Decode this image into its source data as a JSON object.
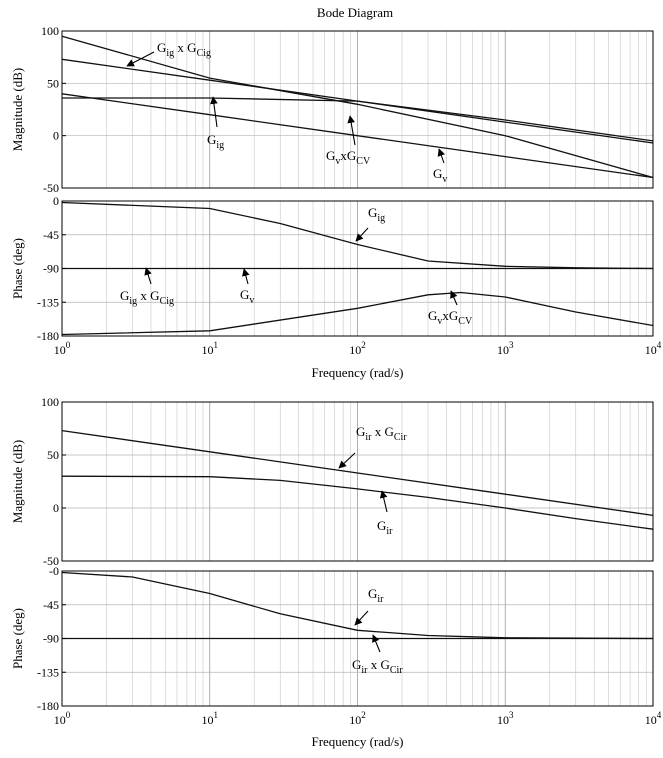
{
  "figure": {
    "title": "Bode Diagram"
  },
  "chart_data": [
    {
      "type": "line",
      "id": "mag1",
      "xscale": "log",
      "xlim": [
        1,
        10000
      ],
      "ylim": [
        -50,
        100
      ],
      "ylabel": "Magnitude (dB)",
      "xlabel": "",
      "x_ticks": [
        1,
        10,
        100,
        1000,
        10000
      ],
      "y_ticks": [
        100,
        50,
        0,
        -50
      ],
      "y_tick_labels": [
        "100",
        "50",
        "0",
        "-50"
      ],
      "grid": true,
      "series": [
        {
          "x": [
            1,
            10,
            100,
            1000,
            10000
          ],
          "y": [
            73,
            53,
            33,
            13,
            -7
          ]
        },
        {
          "x": [
            1,
            10,
            100,
            1000,
            10000
          ],
          "y": [
            95,
            55,
            30,
            0,
            -40
          ]
        },
        {
          "x": [
            1,
            10,
            100,
            1000,
            10000
          ],
          "y": [
            36,
            36,
            33,
            15,
            -5
          ]
        },
        {
          "x": [
            1,
            10,
            100,
            1000,
            10000
          ],
          "y": [
            40,
            20,
            0,
            -20,
            -40
          ]
        }
      ],
      "annotations": [
        {
          "label": "G",
          "sub": "ig",
          "mid": " x G",
          "sub2": "Cig"
        },
        {
          "label": "G",
          "sub": "ig"
        },
        {
          "label": "G",
          "sub": "v",
          "mid": "xG",
          "sub2": "CV"
        },
        {
          "label": "G",
          "sub": "v"
        }
      ]
    },
    {
      "type": "line",
      "id": "ph1",
      "xscale": "log",
      "xlim": [
        1,
        10000
      ],
      "ylim": [
        -180,
        0
      ],
      "ylabel": "Phase (deg)",
      "xlabel": "Frequency  (rad/s)",
      "x_ticks": [
        1,
        10,
        100,
        1000,
        10000
      ],
      "y_ticks": [
        0,
        -45,
        -90,
        -135,
        -180
      ],
      "y_tick_labels": [
        "0",
        "-45",
        "-90",
        "-135",
        "-180"
      ],
      "grid": true,
      "series": [
        {
          "x": [
            1,
            10,
            30,
            100,
            300,
            1000,
            3000,
            10000
          ],
          "y": [
            -2,
            -10,
            -30,
            -58,
            -80,
            -87,
            -89,
            -90
          ]
        },
        {
          "x": [
            1,
            10000
          ],
          "y": [
            -90,
            -90
          ]
        },
        {
          "x": [
            1,
            10,
            100,
            300,
            500,
            1000,
            3000,
            10000
          ],
          "y": [
            -178,
            -173,
            -143,
            -125,
            -122,
            -128,
            -148,
            -166
          ]
        }
      ],
      "annotations": [
        {
          "label": "G",
          "sub": "ig"
        },
        {
          "label": "G",
          "sub": "ig",
          "mid": " x G",
          "sub2": "Cig"
        },
        {
          "label": "G",
          "sub": "v"
        },
        {
          "label": "G",
          "sub": "v",
          "mid": "xG",
          "sub2": "CV"
        }
      ]
    },
    {
      "type": "line",
      "id": "mag2",
      "xscale": "log",
      "xlim": [
        1,
        10000
      ],
      "ylim": [
        -50,
        100
      ],
      "ylabel": "Magnitude (dB)",
      "xlabel": "",
      "x_ticks": [
        1,
        10,
        100,
        1000,
        10000
      ],
      "y_ticks": [
        100,
        50,
        0,
        -50
      ],
      "y_tick_labels": [
        "100",
        "50",
        "0",
        "-50"
      ],
      "grid": true,
      "series": [
        {
          "x": [
            1,
            10,
            100,
            1000,
            10000
          ],
          "y": [
            73,
            53,
            33,
            13,
            -7
          ]
        },
        {
          "x": [
            1,
            10,
            30,
            100,
            300,
            1000,
            3000,
            10000
          ],
          "y": [
            30,
            29.5,
            26,
            18,
            10,
            0,
            -10,
            -20
          ]
        }
      ],
      "annotations": [
        {
          "label": "G",
          "sub": "ir",
          "mid": " x G",
          "sub2": "Cir"
        },
        {
          "label": "G",
          "sub": "ir"
        }
      ]
    },
    {
      "type": "line",
      "id": "ph2",
      "xscale": "log",
      "xlim": [
        1,
        10000
      ],
      "ylim": [
        -180,
        0
      ],
      "ylabel": "Phase (deg)",
      "xlabel": "Frequency  (rad/s)",
      "x_ticks": [
        1,
        10,
        100,
        1000,
        10000
      ],
      "y_ticks": [
        0,
        -45,
        -90,
        -135,
        -180
      ],
      "y_tick_labels": [
        "-0",
        "-45",
        "-90",
        "-135",
        "-180"
      ],
      "grid": true,
      "series": [
        {
          "x": [
            1,
            3,
            10,
            30,
            100,
            300,
            1000,
            10000
          ],
          "y": [
            -2,
            -8,
            -30,
            -57,
            -79,
            -86,
            -89,
            -90
          ]
        },
        {
          "x": [
            1,
            10000
          ],
          "y": [
            -90,
            -90
          ]
        }
      ],
      "annotations": [
        {
          "label": "G",
          "sub": "ir"
        },
        {
          "label": "G",
          "sub": "ir",
          "mid": " x G",
          "sub2": "Cir"
        }
      ]
    }
  ]
}
